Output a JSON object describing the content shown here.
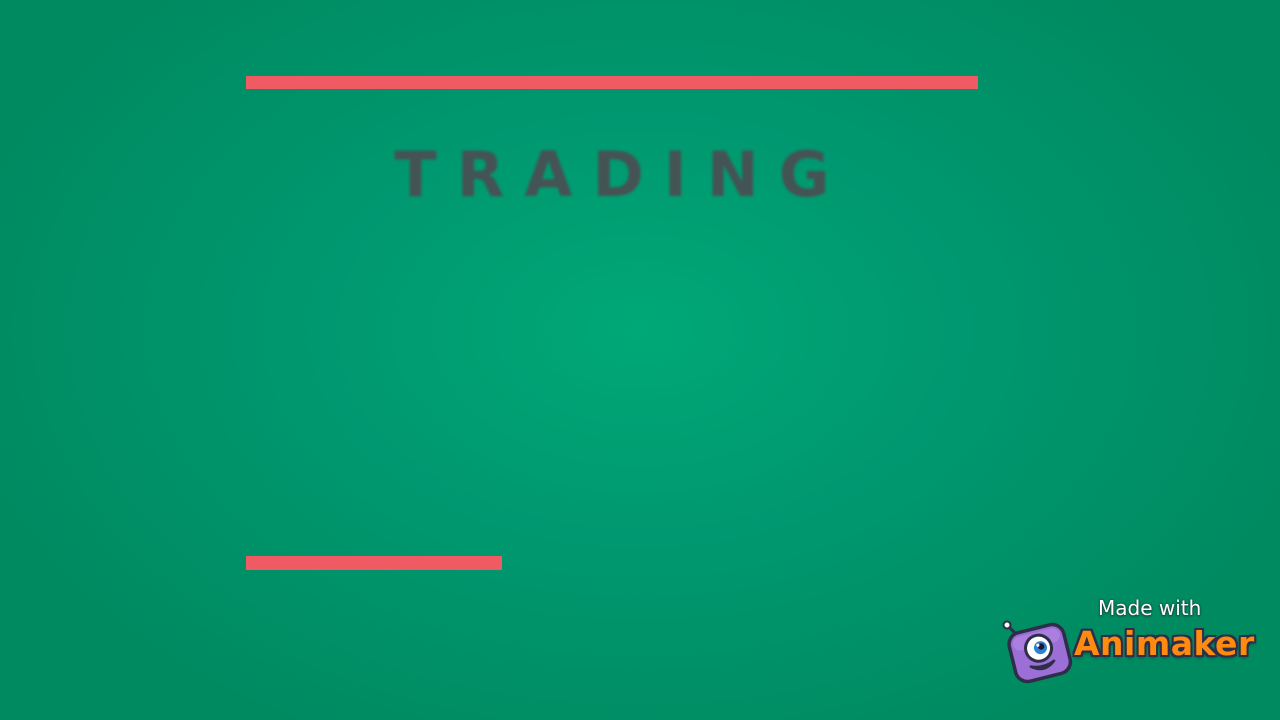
{
  "title": "TRADING",
  "watermark": {
    "made_with": "Made with",
    "brand": "Animaker",
    "mascot_icon": "animaker-mascot-icon"
  },
  "colors": {
    "background": "#00a877",
    "accent_bar": "#f05a62",
    "title_text": "#4a4e52",
    "brand_orange": "#ff8a10"
  }
}
